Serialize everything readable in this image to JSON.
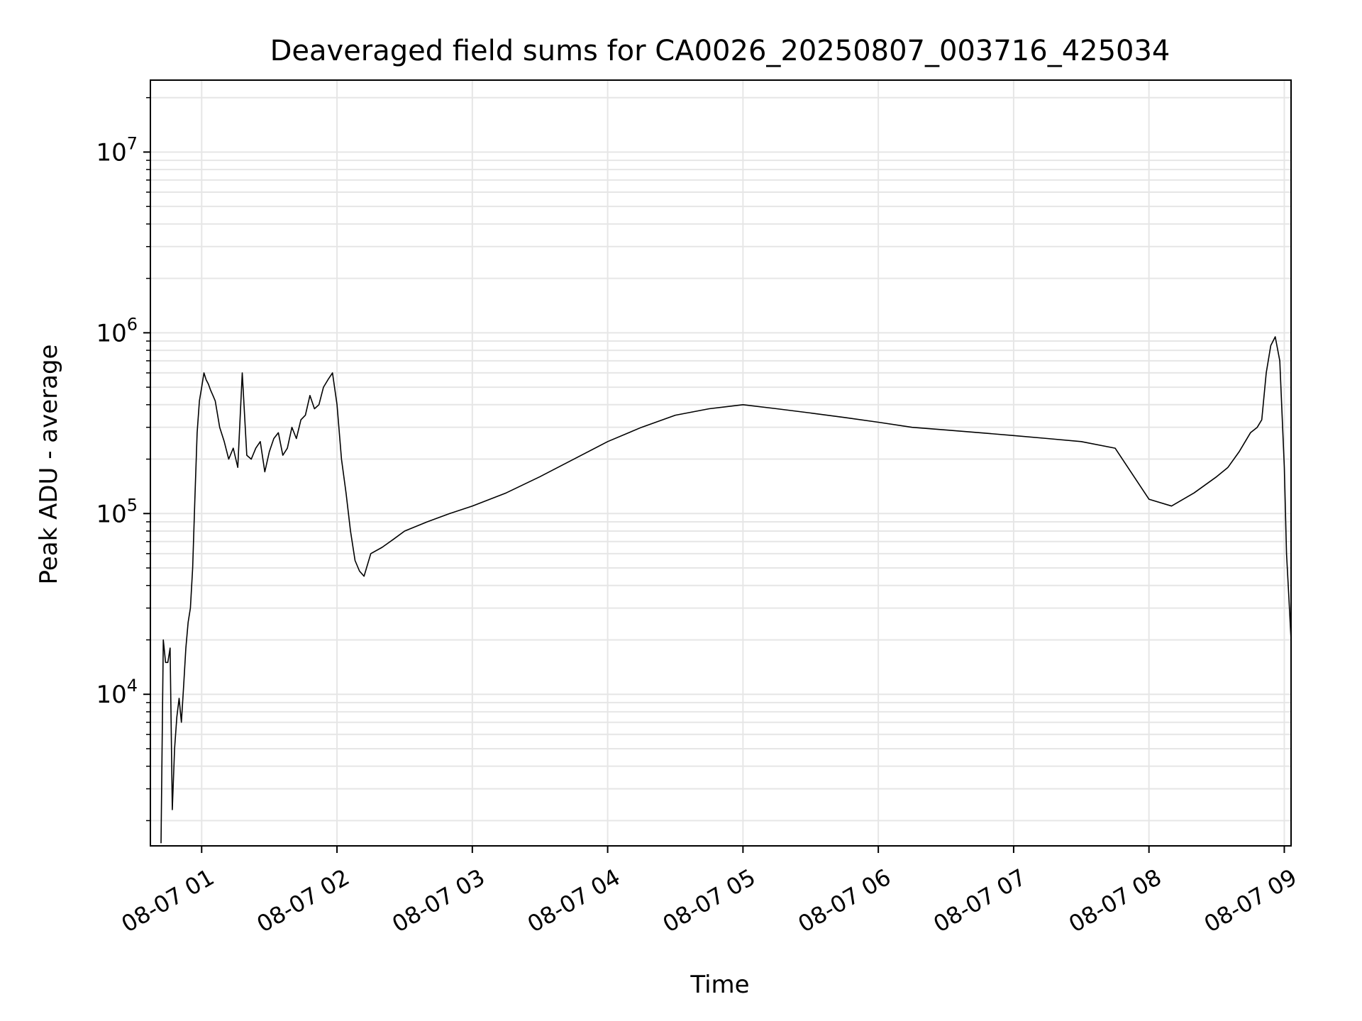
{
  "chart_data": {
    "type": "line",
    "title": "Deaveraged field sums for CA0026_20250807_003716_425034",
    "xlabel": "Time",
    "ylabel": "Peak ADU - average",
    "y_scale": "log",
    "ylim": [
      1450,
      25000000
    ],
    "xlim": [
      "2025-08-07 00:37:16",
      "2025-08-07 09:03:00"
    ],
    "x_ticks": [
      {
        "time": "2025-08-07 01:00",
        "label": "08-07 01"
      },
      {
        "time": "2025-08-07 02:00",
        "label": "08-07 02"
      },
      {
        "time": "2025-08-07 03:00",
        "label": "08-07 03"
      },
      {
        "time": "2025-08-07 04:00",
        "label": "08-07 04"
      },
      {
        "time": "2025-08-07 05:00",
        "label": "08-07 05"
      },
      {
        "time": "2025-08-07 06:00",
        "label": "08-07 06"
      },
      {
        "time": "2025-08-07 07:00",
        "label": "08-07 07"
      },
      {
        "time": "2025-08-07 08:00",
        "label": "08-07 08"
      },
      {
        "time": "2025-08-07 09:00",
        "label": "08-07 09"
      }
    ],
    "y_ticks": [
      {
        "value": 10000,
        "base": "10",
        "exp": "4"
      },
      {
        "value": 100000,
        "base": "10",
        "exp": "5"
      },
      {
        "value": 1000000,
        "base": "10",
        "exp": "6"
      },
      {
        "value": 10000000,
        "base": "10",
        "exp": "7"
      }
    ],
    "grid": true,
    "line_color": "#000000",
    "grid_color": "#e6e6e6",
    "series": [
      {
        "x": [
          "2025-08-07 00:42",
          "2025-08-07 00:43",
          "2025-08-07 00:44",
          "2025-08-07 00:45",
          "2025-08-07 00:46",
          "2025-08-07 00:47",
          "2025-08-07 00:48",
          "2025-08-07 00:49",
          "2025-08-07 00:50",
          "2025-08-07 00:51",
          "2025-08-07 00:52",
          "2025-08-07 00:53",
          "2025-08-07 00:54",
          "2025-08-07 00:55",
          "2025-08-07 00:56",
          "2025-08-07 00:57",
          "2025-08-07 00:58",
          "2025-08-07 00:59",
          "2025-08-07 01:00",
          "2025-08-07 01:01",
          "2025-08-07 01:02",
          "2025-08-07 01:03",
          "2025-08-07 01:04",
          "2025-08-07 01:05",
          "2025-08-07 01:06",
          "2025-08-07 01:08",
          "2025-08-07 01:10",
          "2025-08-07 01:12",
          "2025-08-07 01:14",
          "2025-08-07 01:16",
          "2025-08-07 01:18",
          "2025-08-07 01:20",
          "2025-08-07 01:22",
          "2025-08-07 01:24",
          "2025-08-07 01:26",
          "2025-08-07 01:28",
          "2025-08-07 01:30",
          "2025-08-07 01:32",
          "2025-08-07 01:34",
          "2025-08-07 01:36",
          "2025-08-07 01:38",
          "2025-08-07 01:40",
          "2025-08-07 01:42",
          "2025-08-07 01:44",
          "2025-08-07 01:46",
          "2025-08-07 01:48",
          "2025-08-07 01:50",
          "2025-08-07 01:52",
          "2025-08-07 01:54",
          "2025-08-07 01:56",
          "2025-08-07 01:58",
          "2025-08-07 02:00",
          "2025-08-07 02:02",
          "2025-08-07 02:04",
          "2025-08-07 02:06",
          "2025-08-07 02:08",
          "2025-08-07 02:10",
          "2025-08-07 02:12",
          "2025-08-07 02:15",
          "2025-08-07 02:20",
          "2025-08-07 02:25",
          "2025-08-07 02:30",
          "2025-08-07 02:40",
          "2025-08-07 02:50",
          "2025-08-07 03:00",
          "2025-08-07 03:15",
          "2025-08-07 03:30",
          "2025-08-07 03:45",
          "2025-08-07 04:00",
          "2025-08-07 04:15",
          "2025-08-07 04:30",
          "2025-08-07 04:45",
          "2025-08-07 05:00",
          "2025-08-07 05:15",
          "2025-08-07 05:30",
          "2025-08-07 05:45",
          "2025-08-07 06:00",
          "2025-08-07 06:15",
          "2025-08-07 06:30",
          "2025-08-07 06:45",
          "2025-08-07 07:00",
          "2025-08-07 07:15",
          "2025-08-07 07:30",
          "2025-08-07 07:45",
          "2025-08-07 08:00",
          "2025-08-07 08:10",
          "2025-08-07 08:20",
          "2025-08-07 08:30",
          "2025-08-07 08:35",
          "2025-08-07 08:40",
          "2025-08-07 08:45",
          "2025-08-07 08:48",
          "2025-08-07 08:50",
          "2025-08-07 08:52",
          "2025-08-07 08:54",
          "2025-08-07 08:56",
          "2025-08-07 08:58",
          "2025-08-07 09:00",
          "2025-08-07 09:01",
          "2025-08-07 09:02",
          "2025-08-07 09:03"
        ],
        "y": [
          1500,
          20000,
          15000,
          15000,
          18000,
          2300,
          5000,
          7500,
          9500,
          7000,
          11000,
          18000,
          25000,
          30000,
          50000,
          120000,
          280000,
          420000,
          500000,
          600000,
          550000,
          520000,
          480000,
          450000,
          420000,
          300000,
          250000,
          200000,
          230000,
          180000,
          600000,
          210000,
          200000,
          230000,
          250000,
          170000,
          220000,
          260000,
          280000,
          210000,
          230000,
          300000,
          260000,
          330000,
          350000,
          450000,
          380000,
          400000,
          500000,
          550000,
          600000,
          400000,
          200000,
          130000,
          80000,
          55000,
          48000,
          45000,
          60000,
          65000,
          72000,
          80000,
          90000,
          100000,
          110000,
          130000,
          160000,
          200000,
          250000,
          300000,
          350000,
          380000,
          400000,
          380000,
          360000,
          340000,
          320000,
          300000,
          290000,
          280000,
          270000,
          260000,
          250000,
          230000,
          120000,
          110000,
          130000,
          160000,
          180000,
          220000,
          280000,
          300000,
          330000,
          600000,
          850000,
          950000,
          700000,
          180000,
          60000,
          35000,
          20000
        ]
      }
    ]
  }
}
